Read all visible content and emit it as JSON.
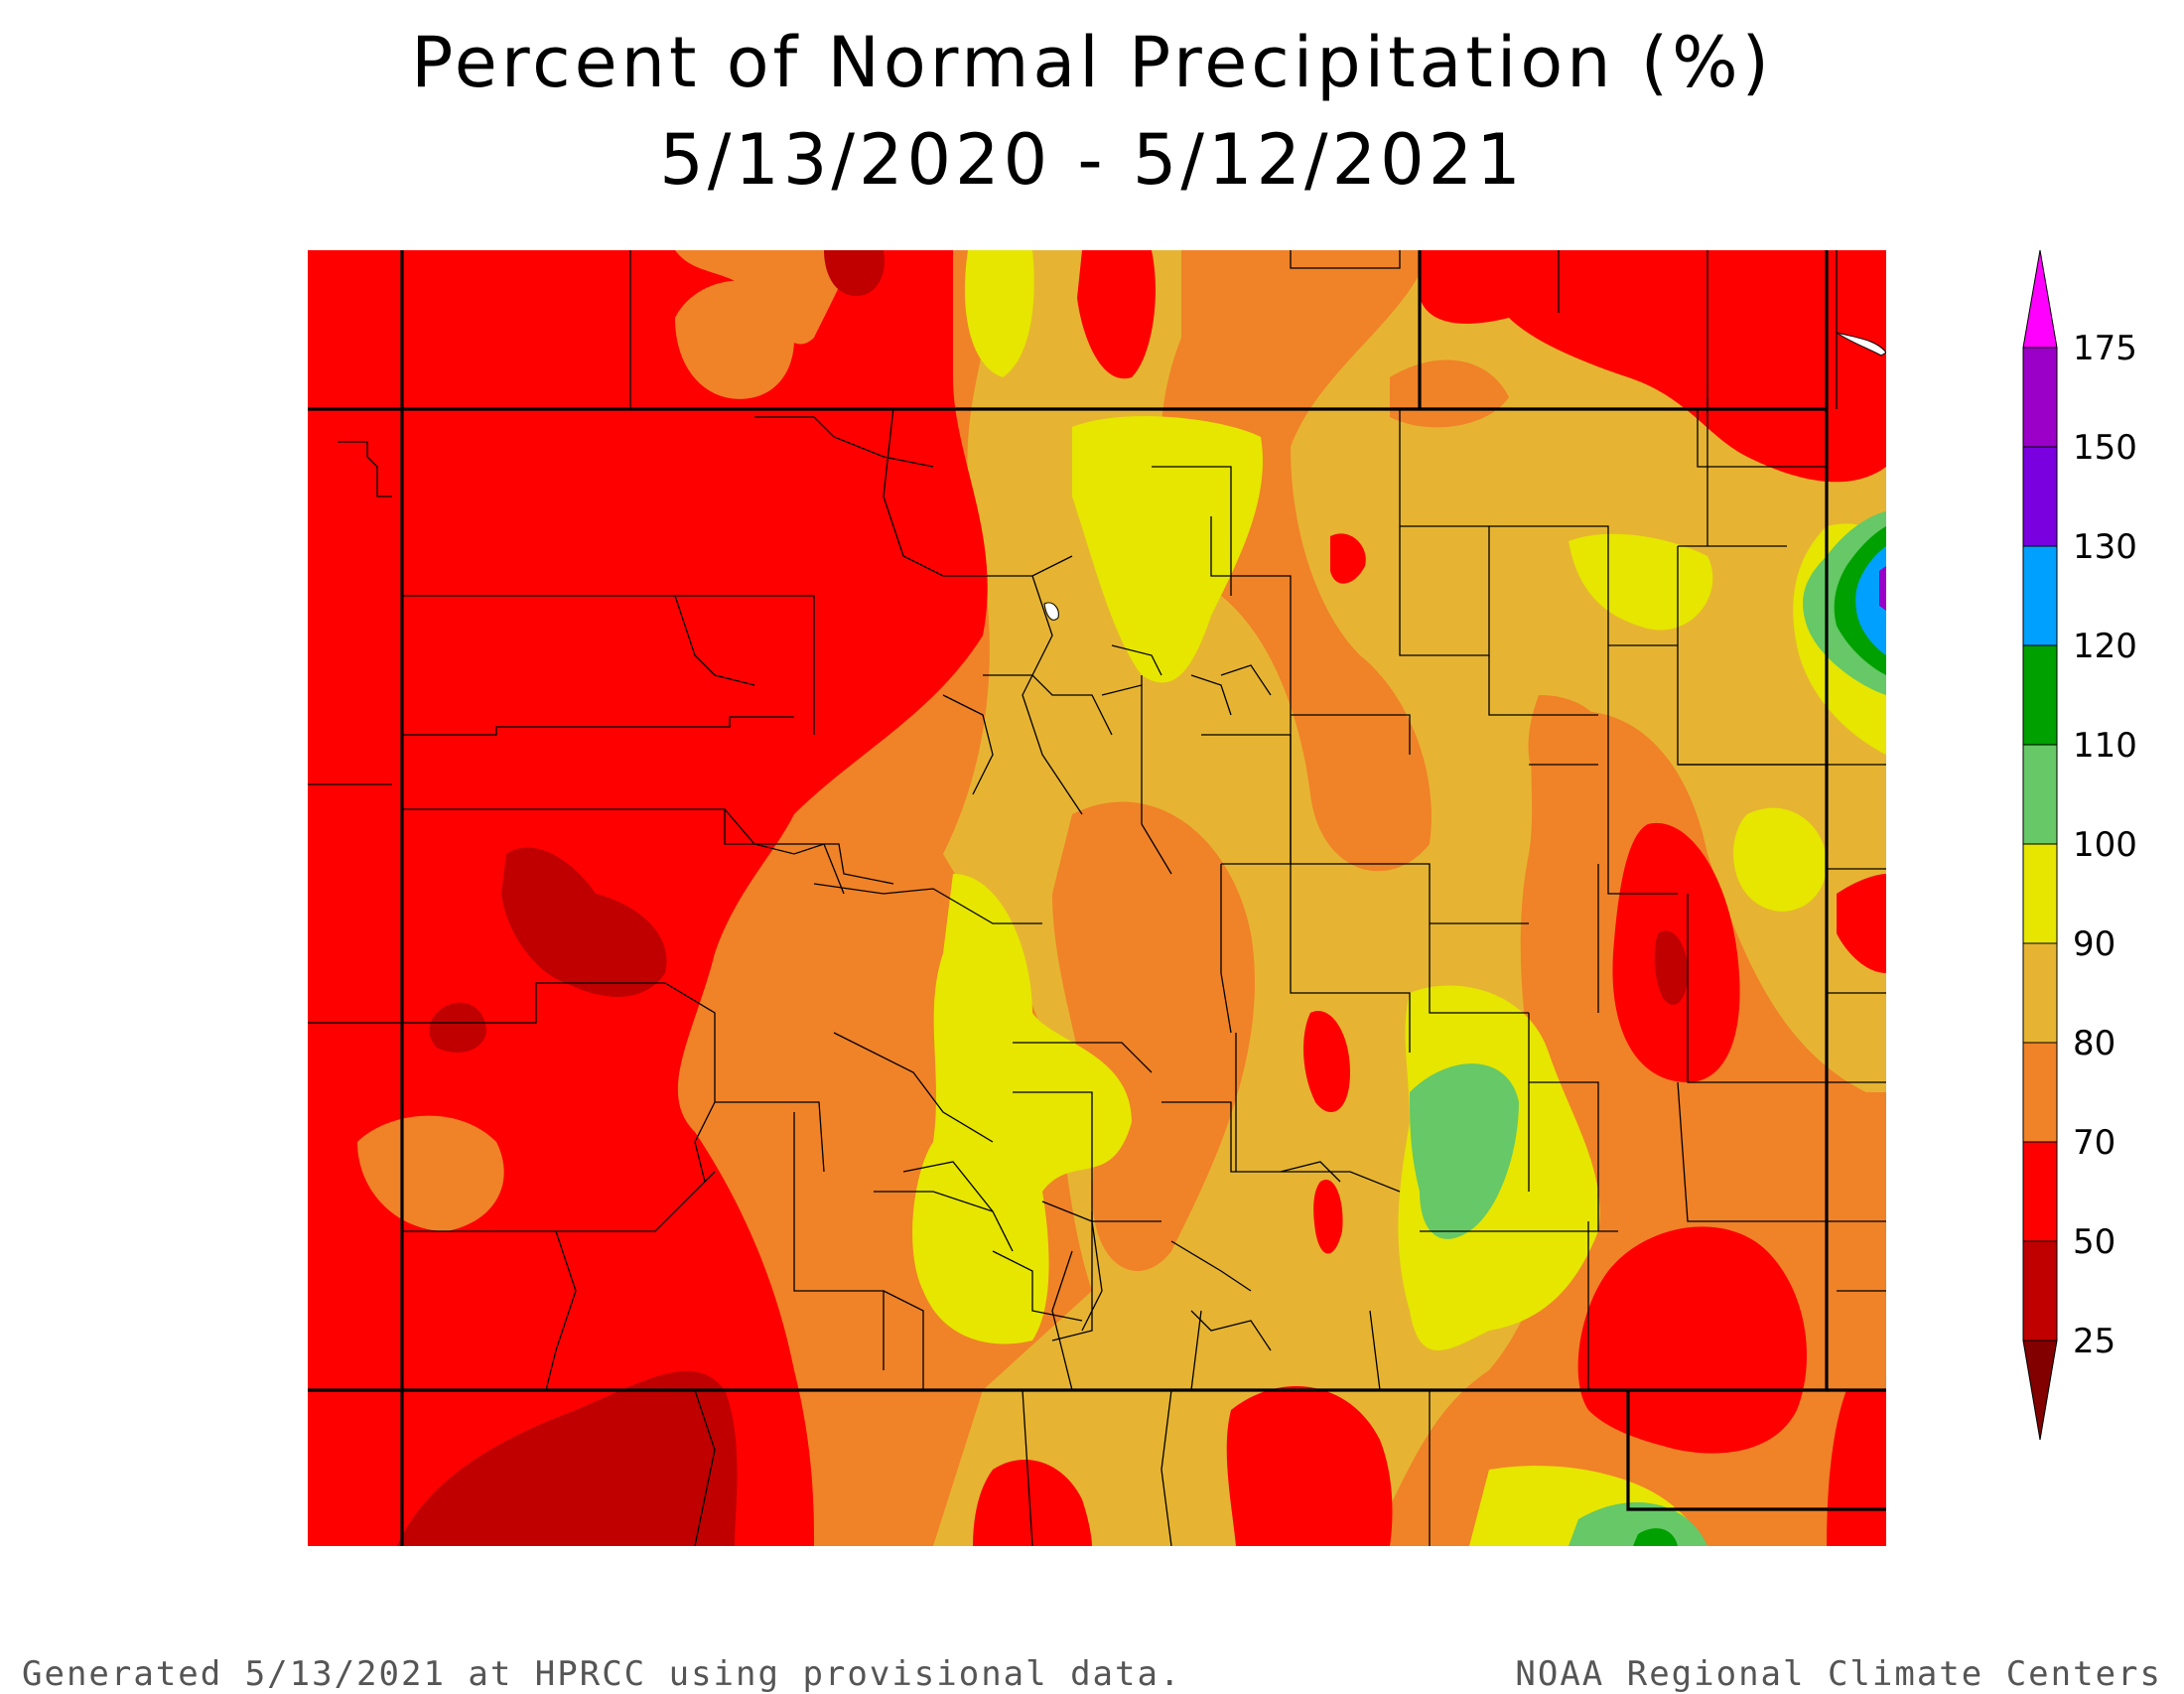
{
  "title": {
    "line1": "Percent of Normal Precipitation (%)",
    "line2": "5/13/2020 - 5/12/2021"
  },
  "legend": {
    "labels": [
      "175",
      "150",
      "130",
      "120",
      "110",
      "100",
      "90",
      "80",
      "70",
      "50",
      "25"
    ],
    "colors": [
      "#ff00ff",
      "#9b00c8",
      "#7a00e0",
      "#00a0ff",
      "#00a000",
      "#66c866",
      "#e6e600",
      "#e6b432",
      "#f08228",
      "#ff0000",
      "#c00000",
      "#820000"
    ]
  },
  "footer": {
    "left": "Generated 5/13/2021 at HPRCC using provisional data.",
    "right": "NOAA Regional Climate Centers"
  },
  "map": {
    "region": "Colorado",
    "palette": {
      "lt25": "#820000",
      "p25_50": "#c00000",
      "p50_70": "#ff0000",
      "p70_80": "#f08228",
      "p80_90": "#e6b432",
      "p90_100": "#e6e600",
      "p100_110": "#66c866",
      "p110_120": "#00a000",
      "p120_130": "#00a0ff",
      "p130_150": "#7a00e0",
      "p150_175": "#9b00c8"
    }
  }
}
